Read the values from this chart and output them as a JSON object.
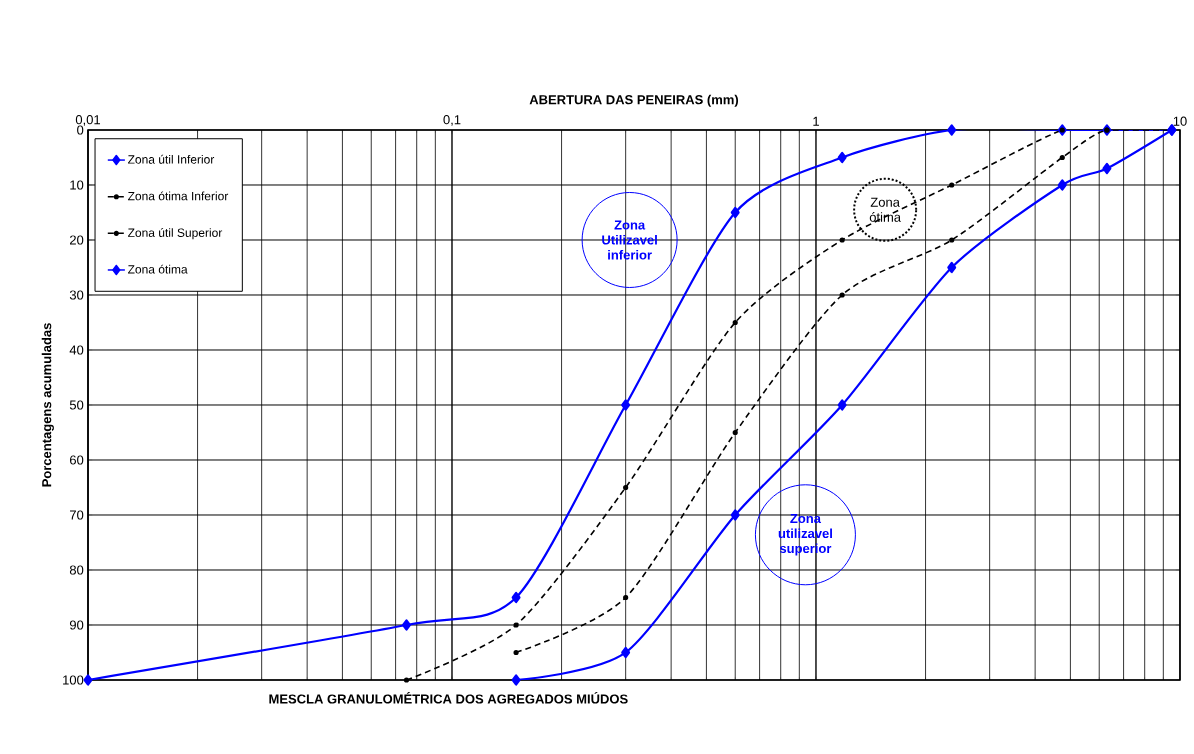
{
  "chart_data": {
    "type": "line",
    "title": "MESCLA GRANULOMÉTRICA DOS AGREGADOS MIÚDOS",
    "xlabel": "ABERTURA DAS PENEIRAS (mm)",
    "ylabel": "Porcentagens acumuladas",
    "log": "x",
    "xlim": [
      0.01,
      10
    ],
    "xticks": [
      {
        "value": 0.01,
        "label": "0,01"
      },
      {
        "value": 0.1,
        "label": "0,1"
      },
      1,
      10
    ],
    "ylim": [
      100,
      0
    ],
    "yticks": [
      0,
      10,
      20,
      30,
      40,
      50,
      60,
      70,
      80,
      90,
      100
    ],
    "grid": true,
    "legend": "top left",
    "series": [
      {
        "name": "Zona útil Inferior",
        "color": "#0000ff",
        "marker": "diamond",
        "line_style": "solid",
        "x": [
          0.01,
          0.075,
          0.15,
          0.3,
          0.6,
          1.18,
          2.36,
          4.75,
          6.3,
          9.5
        ],
        "values": [
          100,
          90,
          85,
          50,
          15,
          5,
          0,
          0,
          0,
          0
        ]
      },
      {
        "name": "Zona ótima Inferior",
        "color": "#000000",
        "marker": "circle",
        "line_style": "dashed",
        "x": [
          0.075,
          0.15,
          0.3,
          0.6,
          1.18,
          2.36,
          4.75,
          6.3,
          9.5
        ],
        "values": [
          100,
          90,
          65,
          35,
          20,
          10,
          0,
          0,
          0
        ]
      },
      {
        "name": "Zona útil Superior",
        "color": "#000000",
        "marker": "circle",
        "line_style": "dashed",
        "x": [
          0.15,
          0.3,
          0.6,
          1.18,
          2.36,
          4.75,
          6.3,
          9.5
        ],
        "values": [
          95,
          85,
          55,
          30,
          20,
          5,
          0,
          0
        ]
      },
      {
        "name": "Zona ótima",
        "color": "#0000ff",
        "marker": "diamond",
        "line_style": "solid",
        "x": [
          0.15,
          0.3,
          0.6,
          1.18,
          2.36,
          4.75,
          6.3,
          9.5
        ],
        "values": [
          100,
          95,
          70,
          50,
          25,
          10,
          7,
          0
        ]
      }
    ],
    "annotations": [
      "Zona Utilizavel inferior",
      "Zona ótima",
      "Zona utilizavel superior"
    ]
  }
}
